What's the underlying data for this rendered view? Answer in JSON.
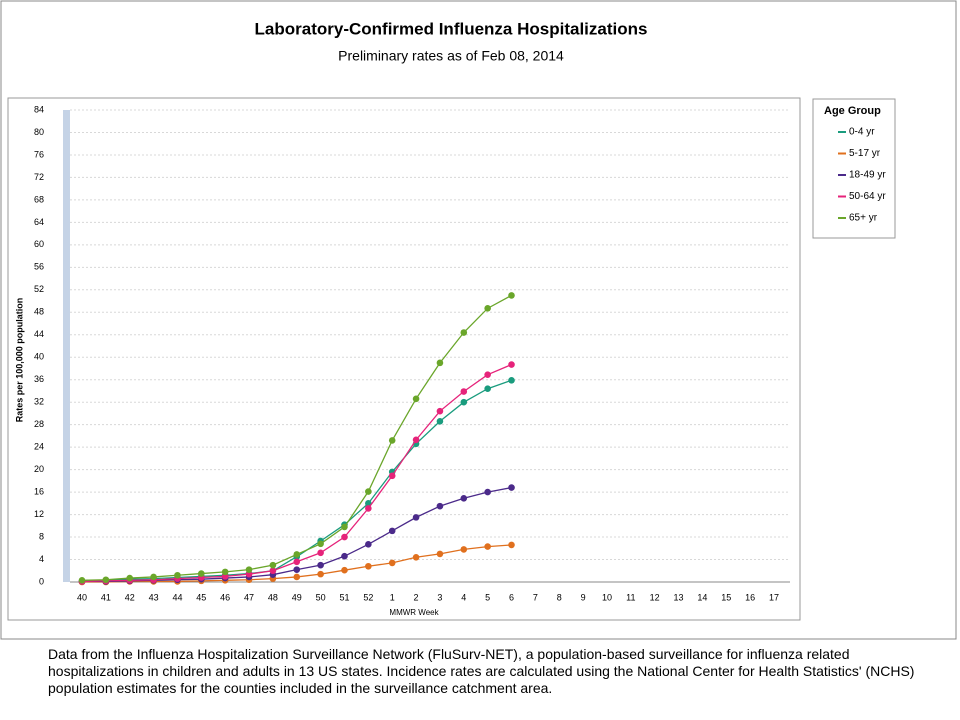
{
  "chart_data": {
    "type": "line",
    "title": "Laboratory-Confirmed Influenza Hospitalizations",
    "subtitle": "Preliminary rates as of Feb 08, 2014",
    "x_label": "MMWR Week",
    "y_label": "Rates per 100,000 population",
    "legend_title": "Age Group",
    "legend_position": "right",
    "grid": true,
    "categories": [
      "40",
      "41",
      "42",
      "43",
      "44",
      "45",
      "46",
      "47",
      "48",
      "49",
      "50",
      "51",
      "52",
      "1",
      "2",
      "3",
      "4",
      "5",
      "6",
      "7",
      "8",
      "9",
      "10",
      "11",
      "12",
      "13",
      "14",
      "15",
      "16",
      "17"
    ],
    "ylim": [
      0,
      84
    ],
    "yticks": [
      0,
      4,
      8,
      12,
      16,
      20,
      24,
      28,
      32,
      36,
      40,
      44,
      48,
      52,
      56,
      60,
      64,
      68,
      72,
      76,
      80,
      84
    ],
    "series": [
      {
        "name": "0-4 yr",
        "color": "#1a9c7e",
        "values": [
          0.2,
          0.3,
          0.5,
          0.6,
          0.8,
          1.0,
          1.2,
          1.5,
          2.0,
          4.5,
          7.3,
          10.2,
          14.0,
          19.6,
          24.6,
          28.6,
          32.0,
          34.4,
          35.9,
          null,
          null,
          null,
          null,
          null,
          null,
          null,
          null,
          null,
          null,
          null
        ]
      },
      {
        "name": "5-17 yr",
        "color": "#e0701e",
        "values": [
          0,
          0,
          0.1,
          0.1,
          0.1,
          0.2,
          0.3,
          0.4,
          0.6,
          0.9,
          1.4,
          2.1,
          2.8,
          3.4,
          4.4,
          5.0,
          5.8,
          6.3,
          6.6,
          null,
          null,
          null,
          null,
          null,
          null,
          null,
          null,
          null,
          null,
          null
        ]
      },
      {
        "name": "18-49 yr",
        "color": "#4b2a8a",
        "values": [
          0.1,
          0.1,
          0.2,
          0.3,
          0.4,
          0.5,
          0.7,
          0.9,
          1.3,
          2.2,
          3.0,
          4.6,
          6.7,
          9.1,
          11.5,
          13.5,
          14.9,
          16.0,
          16.8,
          null,
          null,
          null,
          null,
          null,
          null,
          null,
          null,
          null,
          null,
          null
        ]
      },
      {
        "name": "50-64 yr",
        "color": "#e6237a",
        "values": [
          0.1,
          0.2,
          0.3,
          0.4,
          0.6,
          0.8,
          1.0,
          1.4,
          2.0,
          3.6,
          5.2,
          8.0,
          13.1,
          18.9,
          25.3,
          30.4,
          33.9,
          36.9,
          38.7,
          null,
          null,
          null,
          null,
          null,
          null,
          null,
          null,
          null,
          null,
          null
        ]
      },
      {
        "name": "65+ yr",
        "color": "#6aa62a",
        "values": [
          0.3,
          0.4,
          0.7,
          0.9,
          1.2,
          1.5,
          1.8,
          2.2,
          3.0,
          4.9,
          6.8,
          9.8,
          16.1,
          25.2,
          32.6,
          39.0,
          44.4,
          48.7,
          51.0,
          null,
          null,
          null,
          null,
          null,
          null,
          null,
          null,
          null,
          null,
          null
        ]
      }
    ]
  },
  "note": "Data from the Influenza Hospitalization Surveillance Network (FluSurv-NET),  a population-based surveillance for influenza related hospitalizations in children and adults in 13 US states. Incidence rates are calculated using the National Center for Health Statistics' (NCHS) population estimates for the counties included in the surveillance catchment area."
}
